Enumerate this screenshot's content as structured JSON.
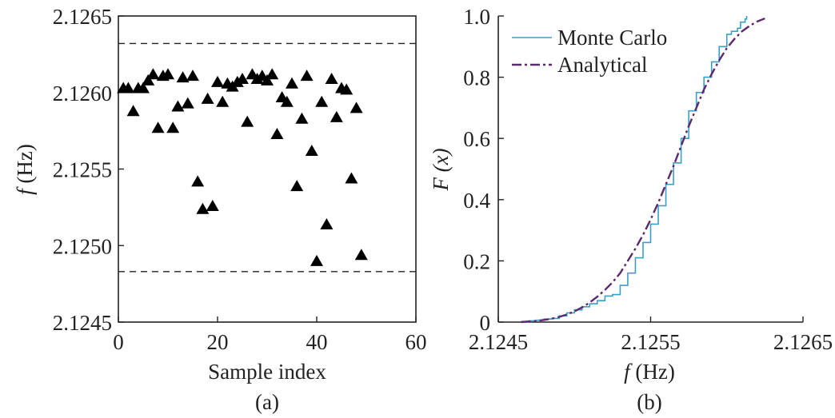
{
  "chart_data": [
    {
      "type": "scatter",
      "panel_label": "(a)",
      "xlabel": "Sample index",
      "ylabel_italic": "f",
      "ylabel_unit": " (Hz)",
      "xlim": [
        0,
        60
      ],
      "ylim": [
        2.1245,
        2.1265
      ],
      "xticks": [
        0,
        20,
        40,
        60
      ],
      "xtick_labels": [
        "0",
        "20",
        "40",
        "60"
      ],
      "yticks": [
        2.1245,
        2.125,
        2.1255,
        2.126,
        2.1265
      ],
      "ytick_labels": [
        "2.1245",
        "2.1250",
        "2.1255",
        "2.1260",
        "2.1265"
      ],
      "marker": "filled-triangle",
      "reference_lines": [
        2.12632,
        2.12483
      ],
      "points": [
        {
          "x": 1,
          "y": 2.12603
        },
        {
          "x": 2,
          "y": 2.12603
        },
        {
          "x": 3,
          "y": 2.12588
        },
        {
          "x": 4,
          "y": 2.12603
        },
        {
          "x": 5,
          "y": 2.12603
        },
        {
          "x": 6,
          "y": 2.12608
        },
        {
          "x": 7,
          "y": 2.12612
        },
        {
          "x": 8,
          "y": 2.12577
        },
        {
          "x": 9,
          "y": 2.12611
        },
        {
          "x": 10,
          "y": 2.12612
        },
        {
          "x": 11,
          "y": 2.12577
        },
        {
          "x": 12,
          "y": 2.12591
        },
        {
          "x": 13,
          "y": 2.1261
        },
        {
          "x": 14,
          "y": 2.12593
        },
        {
          "x": 15,
          "y": 2.12611
        },
        {
          "x": 16,
          "y": 2.12542
        },
        {
          "x": 17,
          "y": 2.12524
        },
        {
          "x": 18,
          "y": 2.12596
        },
        {
          "x": 19,
          "y": 2.12526
        },
        {
          "x": 20,
          "y": 2.12607
        },
        {
          "x": 21,
          "y": 2.12594
        },
        {
          "x": 22,
          "y": 2.12606
        },
        {
          "x": 23,
          "y": 2.12604
        },
        {
          "x": 24,
          "y": 2.12607
        },
        {
          "x": 25,
          "y": 2.12609
        },
        {
          "x": 26,
          "y": 2.12581
        },
        {
          "x": 27,
          "y": 2.12612
        },
        {
          "x": 28,
          "y": 2.12609
        },
        {
          "x": 29,
          "y": 2.12611
        },
        {
          "x": 30,
          "y": 2.12608
        },
        {
          "x": 31,
          "y": 2.12612
        },
        {
          "x": 32,
          "y": 2.12573
        },
        {
          "x": 33,
          "y": 2.12597
        },
        {
          "x": 34,
          "y": 2.12594
        },
        {
          "x": 35,
          "y": 2.12606
        },
        {
          "x": 36,
          "y": 2.12539
        },
        {
          "x": 37,
          "y": 2.12583
        },
        {
          "x": 38,
          "y": 2.12611
        },
        {
          "x": 39,
          "y": 2.12562
        },
        {
          "x": 40,
          "y": 2.1249
        },
        {
          "x": 41,
          "y": 2.12594
        },
        {
          "x": 42,
          "y": 2.12514
        },
        {
          "x": 43,
          "y": 2.12609
        },
        {
          "x": 44,
          "y": 2.12584
        },
        {
          "x": 45,
          "y": 2.12603
        },
        {
          "x": 46,
          "y": 2.12602
        },
        {
          "x": 47,
          "y": 2.12544
        },
        {
          "x": 48,
          "y": 2.1259
        },
        {
          "x": 49,
          "y": 2.12494
        }
      ]
    },
    {
      "type": "line",
      "panel_label": "(b)",
      "xlabel_italic": "f",
      "xlabel_unit": " (Hz)",
      "ylabel": "F (x)",
      "xlim": [
        2.1245,
        2.1265
      ],
      "ylim": [
        0,
        1
      ],
      "xticks": [
        2.1245,
        2.1255,
        2.1265
      ],
      "xtick_labels": [
        "2.1245",
        "2.1255",
        "2.1265"
      ],
      "yticks": [
        0,
        0.2,
        0.4,
        0.6,
        0.8,
        1.0
      ],
      "ytick_labels": [
        "0",
        "0.2",
        "0.4",
        "0.6",
        "0.8",
        "1.0"
      ],
      "legend_position": "top-left",
      "series": [
        {
          "name": "Monte Carlo",
          "color": "#3a9fc7",
          "style": "solid-step",
          "x": [
            2.12465,
            2.1247,
            2.12475,
            2.1248,
            2.12485,
            2.1249,
            2.12495,
            2.125,
            2.12505,
            2.1251,
            2.12515,
            2.1252,
            2.12525,
            2.1253,
            2.12535,
            2.1254,
            2.12545,
            2.1255,
            2.12555,
            2.1256,
            2.12565,
            2.1257,
            2.12575,
            2.1258,
            2.12585,
            2.1259,
            2.12595,
            2.126,
            2.12603,
            2.12607,
            2.12609,
            2.12612,
            2.12613
          ],
          "y": [
            0.002,
            0.004,
            0.006,
            0.01,
            0.012,
            0.02,
            0.03,
            0.04,
            0.05,
            0.06,
            0.07,
            0.085,
            0.09,
            0.12,
            0.16,
            0.21,
            0.26,
            0.32,
            0.38,
            0.45,
            0.52,
            0.6,
            0.69,
            0.75,
            0.8,
            0.85,
            0.9,
            0.94,
            0.95,
            0.96,
            0.98,
            0.99,
            1.0
          ]
        },
        {
          "name": "Analytical",
          "color": "#5b2a6e",
          "style": "dash-dot",
          "x": [
            2.12465,
            2.1247,
            2.12475,
            2.1248,
            2.12485,
            2.1249,
            2.12495,
            2.125,
            2.12505,
            2.1251,
            2.12515,
            2.1252,
            2.12525,
            2.1253,
            2.12535,
            2.1254,
            2.12545,
            2.1255,
            2.12555,
            2.1256,
            2.12565,
            2.1257,
            2.12575,
            2.1258,
            2.12585,
            2.1259,
            2.12595,
            2.126,
            2.12605,
            2.1261,
            2.12615,
            2.1262,
            2.12625
          ],
          "y": [
            0.0,
            0.002,
            0.004,
            0.007,
            0.011,
            0.017,
            0.025,
            0.035,
            0.048,
            0.064,
            0.083,
            0.105,
            0.13,
            0.16,
            0.2,
            0.24,
            0.285,
            0.335,
            0.39,
            0.45,
            0.51,
            0.575,
            0.64,
            0.7,
            0.76,
            0.81,
            0.855,
            0.895,
            0.925,
            0.95,
            0.968,
            0.982,
            0.992
          ]
        }
      ]
    }
  ]
}
